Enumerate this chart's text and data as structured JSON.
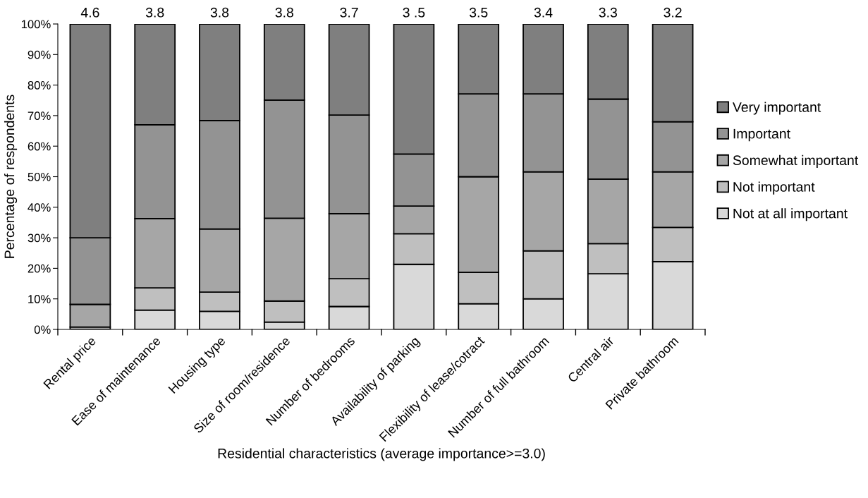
{
  "chart_data": {
    "type": "bar",
    "stacked": true,
    "xlabel": "Residential characteristics (average importance>=3.0)",
    "ylabel": "Percentage of respondents",
    "categories": [
      "Rental price",
      "Ease of maintenance",
      "Housing type",
      "Size of room/residence",
      "Number of bedrooms",
      "Availability of parking",
      "Flexibility of lease/cotract",
      "Number of full bathroom",
      "Central air",
      "Private bathroom"
    ],
    "series": [
      {
        "name": "Not at all important",
        "color": "#d9d9d9",
        "values": [
          null,
          6.3,
          5.9,
          2.4,
          7.5,
          21.3,
          8.4,
          10.0,
          18.2,
          22.2
        ]
      },
      {
        "name": "Not important",
        "color": "#bfbfbf",
        "values": [
          0.8,
          7.3,
          6.3,
          6.9,
          9.1,
          10.0,
          10.3,
          15.7,
          9.9,
          11.2
        ]
      },
      {
        "name": "Somewhat important",
        "color": "#a6a6a6",
        "values": [
          7.4,
          22.7,
          20.7,
          27.1,
          21.3,
          9.1,
          31.3,
          25.9,
          21.1,
          18.2
        ]
      },
      {
        "name": "Important",
        "color": "#939393",
        "values": [
          21.8,
          30.7,
          35.5,
          38.7,
          32.3,
          17.0,
          27.1,
          25.5,
          26.2,
          16.4
        ]
      },
      {
        "name": "Very important",
        "color": "#7f7f7f",
        "values": [
          70.0,
          33.0,
          31.6,
          24.9,
          29.8,
          42.6,
          22.9,
          22.9,
          24.6,
          32.0
        ]
      }
    ],
    "annotations": [
      {
        "text": "4.6",
        "x": "Rental price",
        "y": 100
      },
      {
        "text": "3.8",
        "x": "Ease of maintenance",
        "y": 100
      },
      {
        "text": "3.8",
        "x": "Housing type",
        "y": 100
      },
      {
        "text": "3.8",
        "x": "Size of room/residence",
        "y": 100
      },
      {
        "text": "3.7",
        "x": "Number of bedrooms",
        "y": 100
      },
      {
        "text": "3 .5",
        "x": "Availability of parking",
        "y": 100
      },
      {
        "text": "3.5",
        "x": "Flexibility of lease/cotract",
        "y": 100
      },
      {
        "text": "3.4",
        "x": "Number of full bathroom",
        "y": 100
      },
      {
        "text": "3.3",
        "x": "Central air",
        "y": 100
      },
      {
        "text": "3.2",
        "x": "Private bathroom",
        "y": 100
      }
    ],
    "ylim": [
      0,
      100
    ],
    "yticks": [
      {
        "value": 0,
        "label": "0%"
      },
      {
        "value": 10,
        "label": "10%"
      },
      {
        "value": 20,
        "label": "20%"
      },
      {
        "value": 30,
        "label": "30%"
      },
      {
        "value": 40,
        "label": "40%"
      },
      {
        "value": 50,
        "label": "50%"
      },
      {
        "value": 60,
        "label": "60%"
      },
      {
        "value": 70,
        "label": "70%"
      },
      {
        "value": 80,
        "label": "80%"
      },
      {
        "value": 90,
        "label": "90%"
      },
      {
        "value": 100,
        "label": "100%"
      }
    ],
    "grid": false,
    "legend": "right"
  }
}
